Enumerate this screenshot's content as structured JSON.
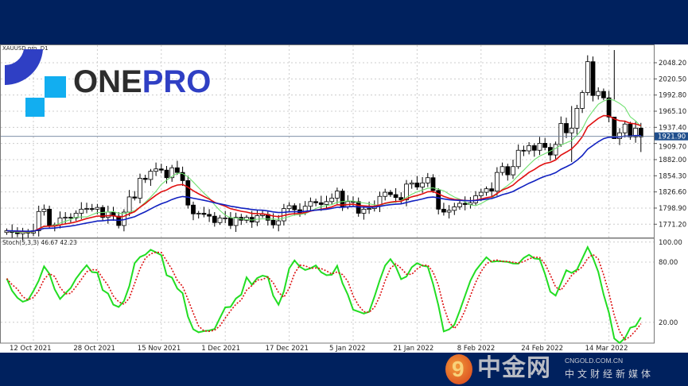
{
  "symbol": "XAUUSD.pro, D1",
  "logo": {
    "text_one": "ONE",
    "text_pro": "PRO"
  },
  "watermark": {
    "glyph": "9",
    "name": "中金网",
    "url": "CNGOLD.COM.CN",
    "tagline": "中文财经新媒体"
  },
  "colors": {
    "ma_fast": "#6fe06f",
    "ma_mid": "#e01010",
    "ma_slow": "#1020c0",
    "stoch_main": "#22dd22",
    "stoch_signal": "#dd1111",
    "bg_band": "#00215e"
  },
  "chart_data": {
    "type": "candlestick",
    "title": "XAUUSD.pro, D1",
    "price_ticks": [
      2048.2,
      2020.5,
      1992.8,
      1965.1,
      1937.4,
      1909.7,
      1882.0,
      1854.3,
      1826.6,
      1798.9,
      1771.2
    ],
    "current_price": "1921.90",
    "ylim": [
      1757,
      2080
    ],
    "date_labels": [
      "12 Oct 2021",
      "28 Oct 2021",
      "15 Nov 2021",
      "1 Dec 2021",
      "17 Dec 2021",
      "5 Jan 2022",
      "21 Jan 2022",
      "8 Feb 2022",
      "24 Feb 2022",
      "14 Mar 2022"
    ],
    "date_label_index": [
      0,
      12,
      24,
      36,
      48,
      60,
      72,
      84,
      96,
      108
    ],
    "first_index": -5,
    "closes": [
      1760,
      1757,
      1755,
      1758,
      1756,
      1760,
      1793,
      1797,
      1768,
      1770,
      1782,
      1783,
      1782,
      1790,
      1797,
      1798,
      1797,
      1800,
      1783,
      1792,
      1785,
      1769,
      1792,
      1818,
      1816,
      1850,
      1848,
      1862,
      1866,
      1864,
      1851,
      1868,
      1860,
      1846,
      1804,
      1789,
      1790,
      1788,
      1785,
      1774,
      1782,
      1782,
      1769,
      1783,
      1778,
      1783,
      1775,
      1786,
      1788,
      1778,
      1770,
      1777,
      1798,
      1803,
      1796,
      1791,
      1802,
      1810,
      1808,
      1805,
      1810,
      1816,
      1828,
      1801,
      1810,
      1810,
      1790,
      1797,
      1798,
      1802,
      1819,
      1826,
      1822,
      1817,
      1813,
      1840,
      1842,
      1835,
      1842,
      1851,
      1829,
      1797,
      1792,
      1795,
      1801,
      1807,
      1805,
      1808,
      1820,
      1826,
      1832,
      1828,
      1860,
      1870,
      1856,
      1870,
      1898,
      1897,
      1906,
      1898,
      1910,
      1903,
      1890,
      1908,
      1944,
      1928,
      1936,
      1970,
      1997,
      2050,
      1992,
      1999,
      1988,
      1955,
      1918,
      1928,
      1943,
      1921,
      1936,
      1921
    ],
    "spikes": {
      "101": [
        1974,
        1878
      ],
      "109": [
        2070,
        1985
      ],
      "114": [
        1945,
        1895
      ]
    },
    "indicator": {
      "label": "Stoch(5,3,3) 46.67 42.23",
      "ticks": [
        100.0,
        80.0,
        20.0
      ],
      "tick_labels": [
        "100.00",
        "80.00",
        "20.00"
      ]
    }
  }
}
